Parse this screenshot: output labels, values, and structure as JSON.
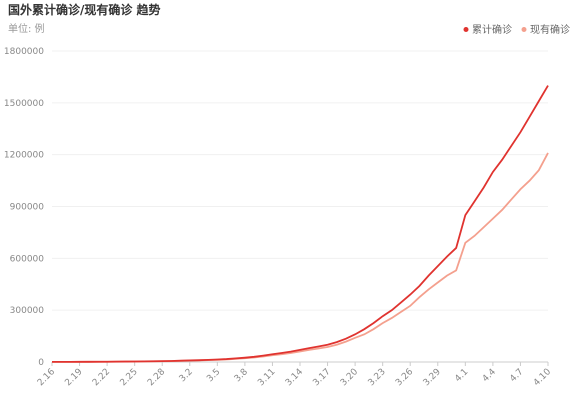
{
  "chart_data": {
    "type": "line",
    "title": "国外累计确诊/现有确诊 趋势",
    "subtitle": "单位: 例",
    "categories": [
      "2.16",
      null,
      null,
      "2.19",
      null,
      null,
      "2.22",
      null,
      null,
      "2.25",
      null,
      null,
      "2.28",
      null,
      null,
      "3.2",
      null,
      null,
      "3.5",
      null,
      null,
      "3.8",
      null,
      null,
      "3.11",
      null,
      null,
      "3.14",
      null,
      null,
      "3.17",
      null,
      null,
      "3.20",
      null,
      null,
      "3.23",
      null,
      null,
      "3.26",
      null,
      null,
      "3.29",
      null,
      null,
      "4.1",
      null,
      null,
      "4.4",
      null,
      null,
      "4.7",
      null,
      null,
      "4.10"
    ],
    "series": [
      {
        "name": "累计确诊",
        "color": "#e0332f",
        "values": [
          700,
          800,
          900,
          1000,
          1100,
          1300,
          1600,
          2000,
          2500,
          3000,
          3500,
          4200,
          5000,
          6000,
          7500,
          9000,
          10500,
          12500,
          14500,
          17000,
          21000,
          25000,
          30000,
          37000,
          45000,
          52000,
          60000,
          70000,
          80000,
          90000,
          100000,
          115000,
          135000,
          160000,
          190000,
          225000,
          265000,
          300000,
          345000,
          390000,
          440000,
          500000,
          555000,
          610000,
          660000,
          850000,
          930000,
          1010000,
          1100000,
          1170000,
          1250000,
          1330000,
          1420000,
          1510000,
          1600000
        ]
      },
      {
        "name": "现有确诊",
        "color": "#f4a08e",
        "values": [
          600,
          700,
          800,
          900,
          1000,
          1100,
          1400,
          1700,
          2100,
          2600,
          3000,
          3600,
          4300,
          5200,
          6500,
          7800,
          9000,
          10800,
          12500,
          14500,
          18000,
          21500,
          26000,
          32000,
          39000,
          45000,
          52000,
          61000,
          70000,
          78000,
          87000,
          100000,
          118000,
          140000,
          160000,
          190000,
          225000,
          255000,
          290000,
          325000,
          375000,
          420000,
          460000,
          500000,
          530000,
          690000,
          730000,
          780000,
          830000,
          880000,
          940000,
          1000000,
          1050000,
          1110000,
          1210000
        ]
      }
    ],
    "ylim": [
      0,
      1800000
    ],
    "yticks": [
      0,
      300000,
      600000,
      900000,
      1200000,
      1500000,
      1800000
    ],
    "grid": true,
    "legend": "top-right"
  }
}
